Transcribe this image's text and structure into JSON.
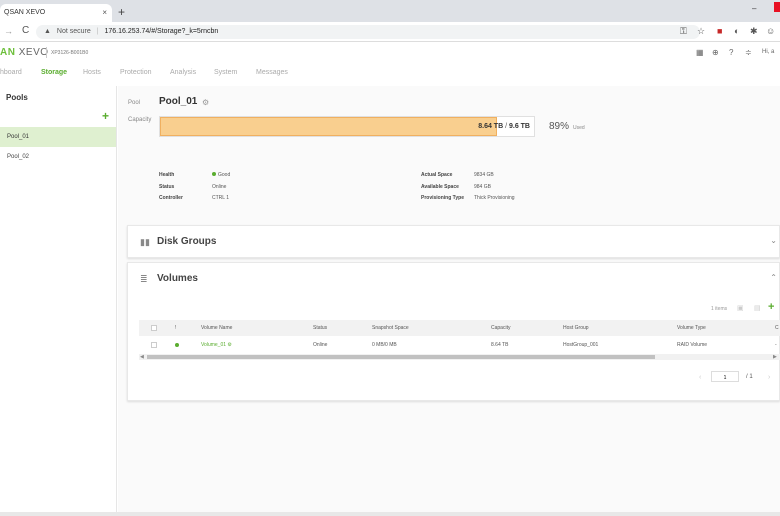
{
  "browser": {
    "tab_title": "QSAN XEVO",
    "tab_close": "×",
    "new_tab": "+",
    "not_secure": "Not secure",
    "url": "176.16.253.74/#/Storage?_k=5rncbn",
    "window_minimize": "–"
  },
  "header": {
    "logo_brand": "AN",
    "logo_product": "XEVO",
    "model": "XP3126-B001B0",
    "greeting": "Hi, a"
  },
  "nav": {
    "items": [
      "hboard",
      "Storage",
      "Hosts",
      "Protection",
      "Analysis",
      "System",
      "Messages"
    ],
    "active": "Storage"
  },
  "sidebar": {
    "title": "Pools",
    "add": "+",
    "pools": [
      "Pool_01",
      "Pool_02"
    ],
    "selected": "Pool_01"
  },
  "pool": {
    "label": "Pool",
    "name": "Pool_01",
    "capacity_label": "Capacity",
    "used": "8.64 TB",
    "slash": " / ",
    "total": "9.6 TB",
    "used_fraction": 0.9,
    "percent": "89%",
    "percent_label": "Used"
  },
  "info": {
    "health_label": "Health",
    "health_value": "Good",
    "status_label": "Status",
    "status_value": "Online",
    "controller_label": "Controller",
    "controller_value": "CTRL 1",
    "actual_label": "Actual Space",
    "actual_value": "9834 GB",
    "available_label": "Available Space",
    "available_value": "984 GB",
    "provisioning_label": "Provisioning Type",
    "provisioning_value": "Thick Provisioning"
  },
  "disk_groups": {
    "title": "Disk Groups",
    "chevron": "⌄"
  },
  "volumes": {
    "title": "Volumes",
    "chevron": "⌃",
    "count_label": "1 items",
    "add": "+",
    "columns": {
      "alert": "!",
      "name": "Volume Name",
      "status": "Status",
      "snapshot": "Snapshot Space",
      "capacity": "Capacity",
      "host_group": "Host Group",
      "type": "Volume Type",
      "extra": "C"
    },
    "rows": [
      {
        "name": "Volume_01",
        "status": "Online",
        "snapshot": "0 MB/0 MB",
        "capacity": "8.64 TB",
        "host_group": "HostGroup_001",
        "type": "RAID Volume",
        "extra": "-"
      }
    ],
    "page_current": "1",
    "page_of": "/ 1"
  },
  "colors": {
    "accent": "#5aad2f",
    "capacity_fill": "#f9cf8f",
    "selected_row": "#dff0d0"
  },
  "icons": [
    "back-icon",
    "reload-icon",
    "warning-icon",
    "key-icon",
    "star-icon",
    "gear-icon",
    "globe-icon",
    "help-icon",
    "grid-icon",
    "disk-icon",
    "database-icon",
    "camera-icon",
    "trash-icon"
  ]
}
